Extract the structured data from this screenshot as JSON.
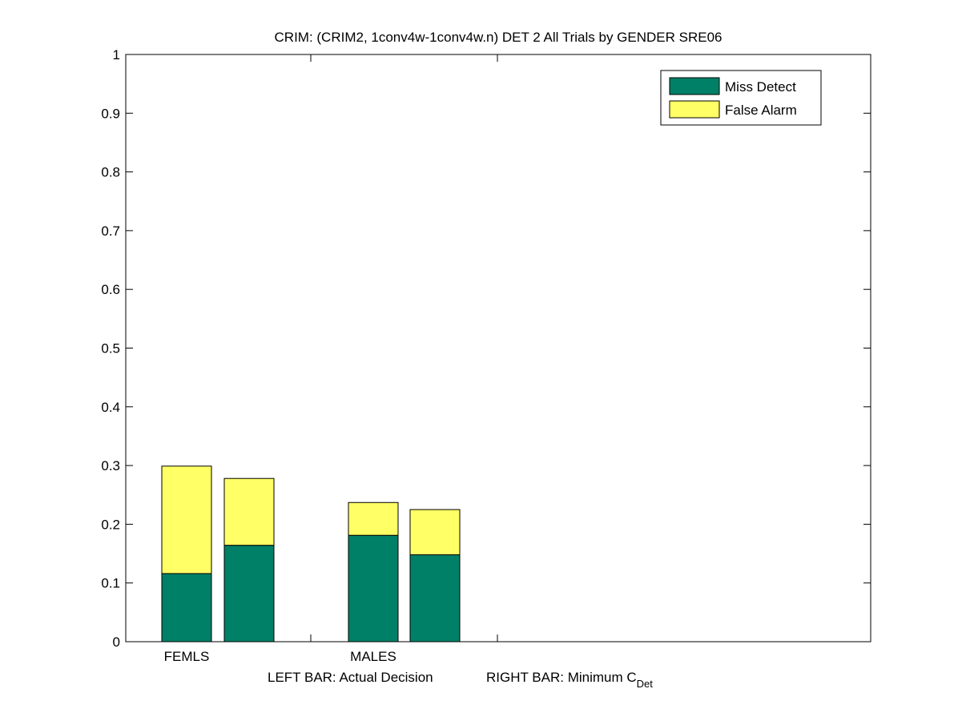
{
  "colors": {
    "background": "#ffffff",
    "axis": "#000000",
    "miss_detect": "#008066",
    "false_alarm": "#ffff66"
  },
  "chart_data": {
    "type": "bar",
    "stacked": true,
    "title": "CRIM: (CRIM2, 1conv4w-1conv4w.n) DET 2 All Trials by GENDER SRE06",
    "xlabel_parts": {
      "left": "LEFT BAR: Actual Decision",
      "right_prefix": "RIGHT BAR: Minimum C",
      "right_subscript": "Det"
    },
    "categories": [
      "FEMLS",
      "MALES"
    ],
    "ylim": [
      0,
      1
    ],
    "yticks": [
      "0",
      "0.1",
      "0.2",
      "0.3",
      "0.4",
      "0.5",
      "0.6",
      "0.7",
      "0.8",
      "0.9",
      "1"
    ],
    "grid": false,
    "legend_position": "top-right",
    "series": [
      {
        "name": "Miss Detect",
        "color": "#008066"
      },
      {
        "name": "False Alarm",
        "color": "#ffff66"
      }
    ],
    "bars": [
      {
        "category": "FEMLS",
        "kind": "Actual Decision",
        "miss_detect": 0.116,
        "false_alarm": 0.183
      },
      {
        "category": "FEMLS",
        "kind": "Minimum C_Det",
        "miss_detect": 0.164,
        "false_alarm": 0.114
      },
      {
        "category": "MALES",
        "kind": "Actual Decision",
        "miss_detect": 0.181,
        "false_alarm": 0.056
      },
      {
        "category": "MALES",
        "kind": "Minimum C_Det",
        "miss_detect": 0.148,
        "false_alarm": 0.077
      }
    ]
  }
}
